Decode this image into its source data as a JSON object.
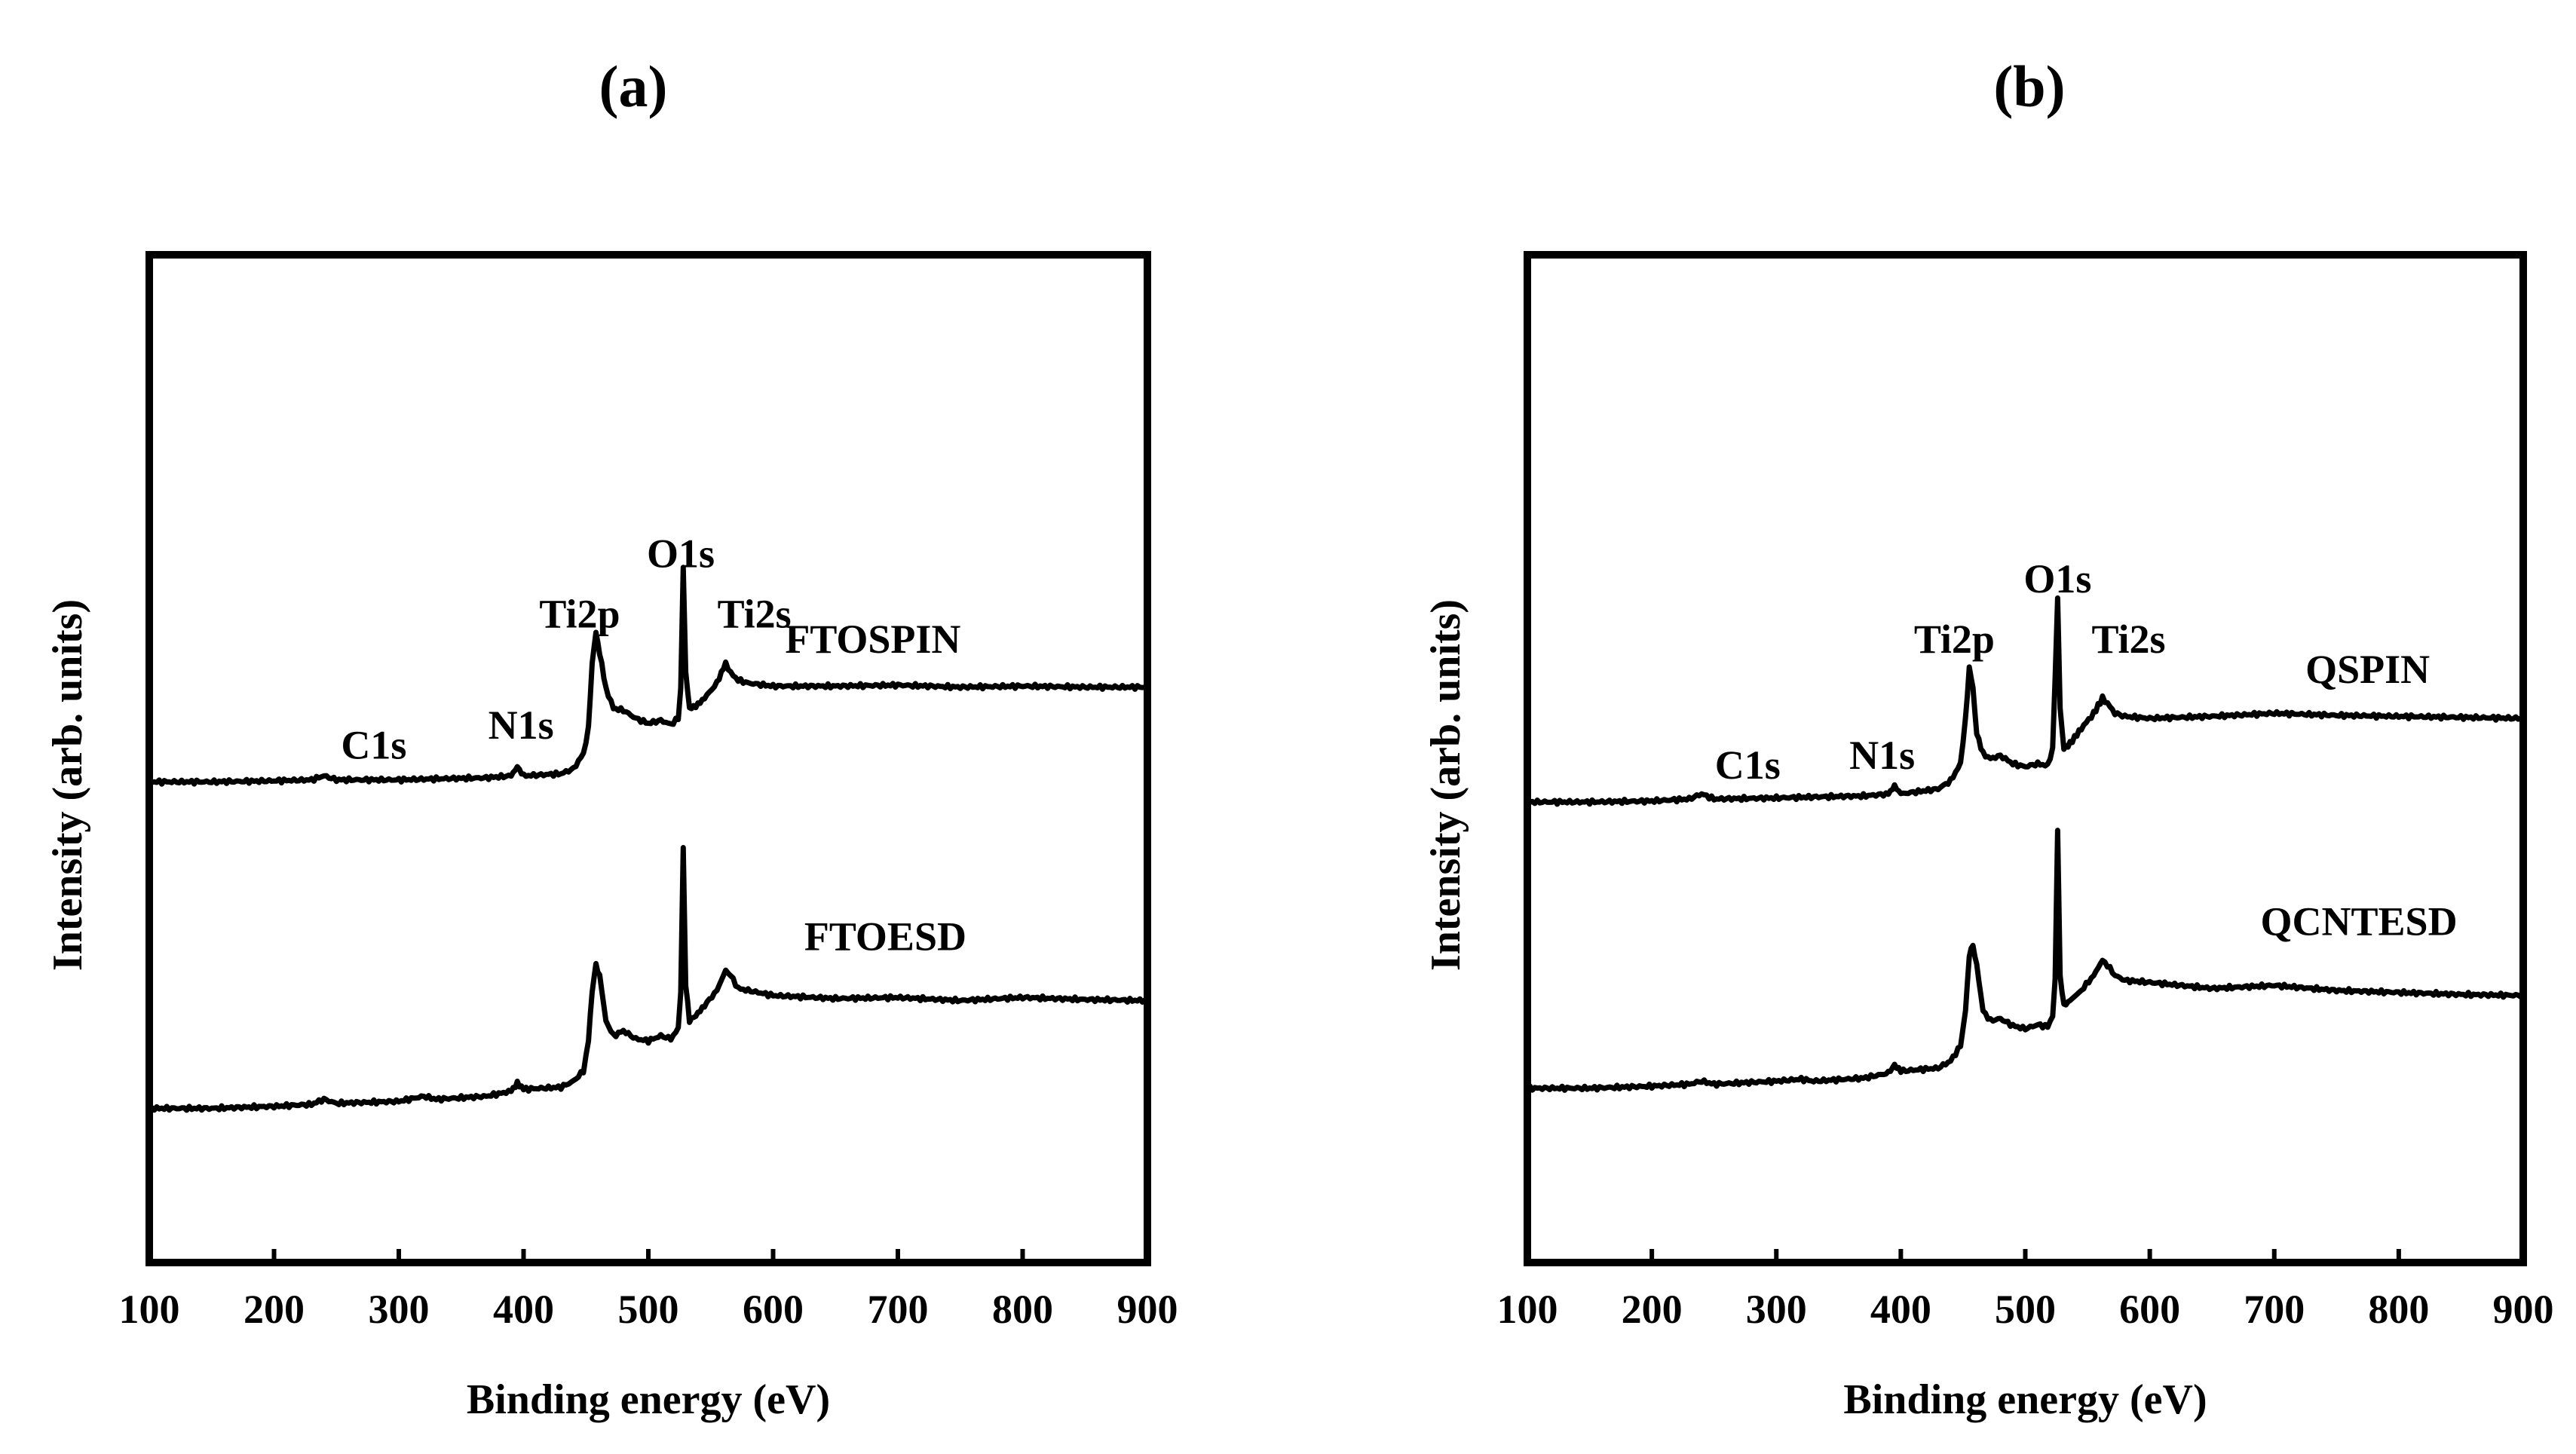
{
  "figure": {
    "panel_labels": [
      "(a)",
      "(b)"
    ]
  },
  "chart_data": [
    {
      "type": "line",
      "panel": "(a)",
      "xlabel": "Binding energy (eV)",
      "ylabel": "Intensity (arb. units)",
      "xlim": [
        100,
        900
      ],
      "ylim": [
        0,
        10
      ],
      "xticks": [
        100,
        200,
        300,
        400,
        500,
        600,
        700,
        800,
        900
      ],
      "peak_labels": [
        {
          "text": "C1s",
          "x": 280,
          "y": 5.0
        },
        {
          "text": "N1s",
          "x": 398,
          "y": 5.2
        },
        {
          "text": "Ti2p",
          "x": 445,
          "y": 6.3
        },
        {
          "text": "O1s",
          "x": 526,
          "y": 6.9
        },
        {
          "text": "Ti2s",
          "x": 585,
          "y": 6.3
        }
      ],
      "series": [
        {
          "name": "FTOSPIN",
          "label_pos": {
            "x": 680,
            "y": 6.05
          },
          "x": [
            100,
            150,
            200,
            230,
            240,
            250,
            300,
            330,
            370,
            390,
            395,
            400,
            430,
            440,
            448,
            452,
            455,
            458,
            461,
            466,
            472,
            480,
            490,
            500,
            510,
            518,
            524,
            526,
            528,
            530,
            533,
            538,
            545,
            555,
            562,
            566,
            572,
            580,
            600,
            650,
            700,
            750,
            800,
            850,
            900
          ],
          "y": [
            4.77,
            4.77,
            4.78,
            4.79,
            4.83,
            4.79,
            4.79,
            4.8,
            4.81,
            4.83,
            4.92,
            4.83,
            4.85,
            4.9,
            5.05,
            5.3,
            5.95,
            6.25,
            6.05,
            5.7,
            5.5,
            5.48,
            5.4,
            5.35,
            5.38,
            5.34,
            5.4,
            5.7,
            6.9,
            5.85,
            5.5,
            5.52,
            5.6,
            5.75,
            5.95,
            5.85,
            5.78,
            5.75,
            5.72,
            5.72,
            5.73,
            5.71,
            5.72,
            5.71,
            5.71
          ]
        },
        {
          "name": "FTOESD",
          "label_pos": {
            "x": 690,
            "y": 3.1
          },
          "x": [
            100,
            150,
            200,
            230,
            240,
            250,
            300,
            320,
            330,
            370,
            390,
            395,
            400,
            430,
            440,
            448,
            452,
            455,
            458,
            461,
            466,
            472,
            480,
            490,
            500,
            510,
            518,
            524,
            526,
            528,
            530,
            533,
            538,
            545,
            555,
            562,
            566,
            572,
            580,
            600,
            650,
            700,
            750,
            800,
            850,
            900
          ],
          "y": [
            1.53,
            1.53,
            1.55,
            1.57,
            1.62,
            1.58,
            1.6,
            1.65,
            1.62,
            1.65,
            1.7,
            1.78,
            1.72,
            1.74,
            1.8,
            1.9,
            2.2,
            2.7,
            2.95,
            2.85,
            2.4,
            2.25,
            2.3,
            2.22,
            2.2,
            2.25,
            2.22,
            2.32,
            2.7,
            4.1,
            2.75,
            2.4,
            2.45,
            2.55,
            2.7,
            2.9,
            2.85,
            2.72,
            2.7,
            2.65,
            2.62,
            2.63,
            2.6,
            2.63,
            2.61,
            2.6
          ]
        }
      ]
    },
    {
      "type": "line",
      "panel": "(b)",
      "xlabel": "Binding energy (eV)",
      "ylabel": "Intensity (arb. units)",
      "xlim": [
        100,
        900
      ],
      "ylim": [
        0,
        10
      ],
      "xticks": [
        100,
        200,
        300,
        400,
        500,
        600,
        700,
        800,
        900
      ],
      "peak_labels": [
        {
          "text": "C1s",
          "x": 277,
          "y": 4.8
        },
        {
          "text": "N1s",
          "x": 385,
          "y": 4.9
        },
        {
          "text": "Ti2p",
          "x": 443,
          "y": 6.05
        },
        {
          "text": "O1s",
          "x": 526,
          "y": 6.65
        },
        {
          "text": "Ti2s",
          "x": 583,
          "y": 6.05
        }
      ],
      "series": [
        {
          "name": "QSPIN",
          "label_pos": {
            "x": 775,
            "y": 5.75
          },
          "x": [
            100,
            150,
            200,
            230,
            240,
            250,
            300,
            330,
            370,
            390,
            395,
            400,
            430,
            440,
            448,
            452,
            455,
            458,
            461,
            466,
            472,
            480,
            490,
            500,
            510,
            518,
            522,
            524,
            526,
            528,
            531,
            536,
            545,
            555,
            562,
            566,
            572,
            580,
            600,
            650,
            700,
            750,
            800,
            850,
            900
          ],
          "y": [
            4.57,
            4.57,
            4.58,
            4.6,
            4.65,
            4.6,
            4.61,
            4.62,
            4.63,
            4.65,
            4.73,
            4.65,
            4.7,
            4.78,
            4.95,
            5.4,
            5.9,
            5.7,
            5.25,
            5.05,
            5.0,
            5.03,
            4.95,
            4.92,
            4.95,
            4.93,
            5.1,
            5.8,
            6.6,
            5.5,
            5.1,
            5.15,
            5.3,
            5.45,
            5.6,
            5.55,
            5.45,
            5.42,
            5.4,
            5.42,
            5.45,
            5.43,
            5.42,
            5.41,
            5.4
          ]
        },
        {
          "name": "QCNTESD",
          "label_pos": {
            "x": 768,
            "y": 3.25
          },
          "x": [
            100,
            150,
            200,
            230,
            240,
            250,
            300,
            320,
            330,
            370,
            390,
            395,
            400,
            430,
            440,
            448,
            452,
            455,
            458,
            461,
            466,
            472,
            480,
            490,
            500,
            510,
            518,
            522,
            524,
            526,
            528,
            531,
            536,
            545,
            555,
            562,
            566,
            572,
            580,
            600,
            650,
            700,
            750,
            800,
            850,
            900
          ],
          "y": [
            1.73,
            1.73,
            1.75,
            1.77,
            1.8,
            1.77,
            1.8,
            1.82,
            1.8,
            1.83,
            1.88,
            1.96,
            1.9,
            1.93,
            2.0,
            2.15,
            2.5,
            3.05,
            3.15,
            2.95,
            2.5,
            2.4,
            2.42,
            2.35,
            2.32,
            2.36,
            2.34,
            2.45,
            2.8,
            4.3,
            2.85,
            2.55,
            2.6,
            2.7,
            2.85,
            3.0,
            2.95,
            2.85,
            2.8,
            2.78,
            2.72,
            2.75,
            2.7,
            2.68,
            2.66,
            2.65
          ]
        }
      ]
    }
  ]
}
